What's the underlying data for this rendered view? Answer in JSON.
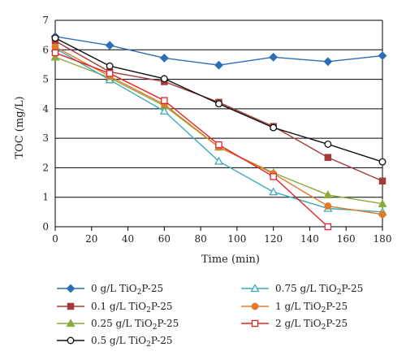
{
  "chart_data": {
    "type": "line",
    "title": "",
    "xlabel": "Time (min)",
    "ylabel": "TOC (mg/L)",
    "xlim": [
      0,
      180
    ],
    "ylim": [
      0,
      7
    ],
    "x_ticks": [
      0,
      20,
      40,
      60,
      80,
      100,
      120,
      140,
      160,
      180
    ],
    "y_ticks": [
      0,
      1,
      2,
      3,
      4,
      5,
      6,
      7
    ],
    "grid": "horizontal",
    "legend_position": "bottom",
    "series": [
      {
        "name": "0 g/L TiO2P-25",
        "name_main": "0 g/L TiO",
        "name_sub": "2",
        "name_tail": "P-25",
        "color": "#2a6eb4",
        "marker": "diamond",
        "x": [
          0,
          30,
          60,
          90,
          120,
          150,
          180
        ],
        "y": [
          6.45,
          6.15,
          5.72,
          5.48,
          5.75,
          5.6,
          5.8
        ]
      },
      {
        "name": "0.1 g/L TiO2P-25",
        "name_main": "0.1 g/L TiO",
        "name_sub": "2",
        "name_tail": "P-25",
        "color": "#a33b3b",
        "marker": "square",
        "x": [
          0,
          30,
          60,
          90,
          120,
          150,
          180
        ],
        "y": [
          6.3,
          5.25,
          4.92,
          4.22,
          3.4,
          2.35,
          1.55
        ]
      },
      {
        "name": "0.25 g/L TiO2P-25",
        "name_main": "0.25 g/L TiO",
        "name_sub": "2",
        "name_tail": "P-25",
        "color": "#8aaa3a",
        "marker": "triangle",
        "x": [
          0,
          30,
          60,
          90,
          120,
          150,
          180
        ],
        "y": [
          5.75,
          5.05,
          4.1,
          2.7,
          1.83,
          1.08,
          0.78
        ]
      },
      {
        "name": "0.5 g/L TiO2P-25",
        "name_main": "0.5 g/L TiO",
        "name_sub": "2",
        "name_tail": "P-25",
        "color": "#111111",
        "marker": "circle-open",
        "x": [
          0,
          30,
          60,
          90,
          120,
          150,
          180
        ],
        "y": [
          6.4,
          5.45,
          5.02,
          4.17,
          3.36,
          2.8,
          2.2
        ]
      },
      {
        "name": "0.75 g/L TiO2P-25",
        "name_main": "0.75 g/L TiO",
        "name_sub": "2",
        "name_tail": "P-25",
        "color": "#3fa9b8",
        "marker": "triangle-open",
        "x": [
          0,
          30,
          60,
          90,
          120,
          150,
          180
        ],
        "y": [
          6.05,
          4.98,
          3.92,
          2.22,
          1.18,
          0.62,
          0.5
        ]
      },
      {
        "name": "1 g/L TiO2P-25",
        "name_main": "1 g/L TiO",
        "name_sub": "2",
        "name_tail": "P-25",
        "color": "#e07b2a",
        "marker": "circle",
        "x": [
          0,
          30,
          60,
          90,
          120,
          150,
          180
        ],
        "y": [
          6.1,
          5.1,
          4.15,
          2.7,
          1.8,
          0.7,
          0.42
        ]
      },
      {
        "name": "2 g/L TiO2P-25",
        "name_main": "2 g/L TiO",
        "name_sub": "2",
        "name_tail": "P-25",
        "color": "#e0262a",
        "marker": "square-open",
        "x": [
          0,
          30,
          60,
          90,
          120,
          150
        ],
        "y": [
          5.9,
          5.2,
          4.28,
          2.78,
          1.7,
          0.0
        ]
      }
    ]
  }
}
